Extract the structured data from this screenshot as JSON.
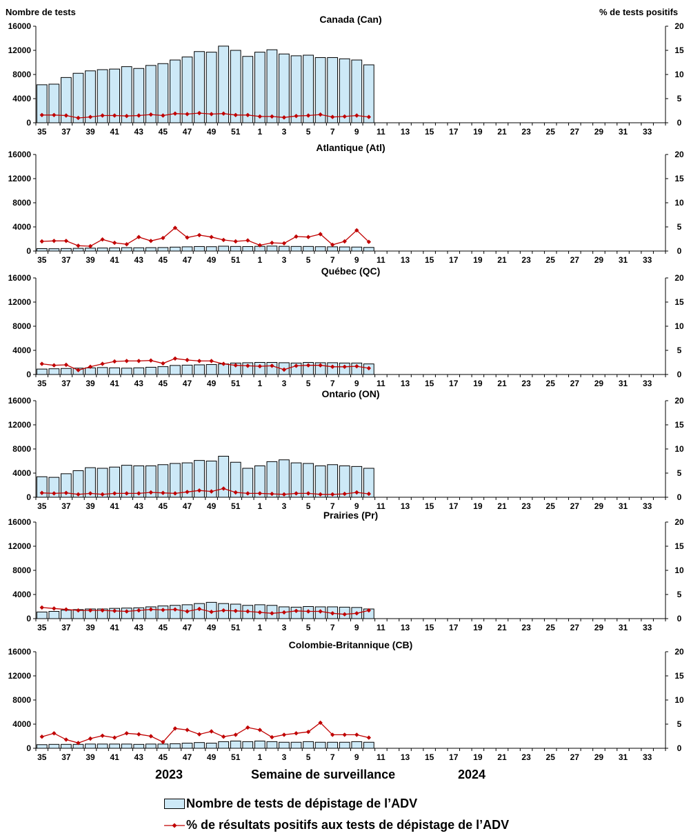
{
  "y_left_title": "Nombre de tests",
  "y_right_title": "% de tests positifs",
  "x_label": "Semaine de surveillance",
  "year_left": "2023",
  "year_right": "2024",
  "legend": {
    "bars": "Nombre de tests de dépistage de l’ADV",
    "line": "% de résultats positifs aux tests de dépistage de l’ADV"
  },
  "colors": {
    "bar_fill": "#cde9f7",
    "bar_stroke": "#000000",
    "line": "#c00000"
  },
  "chart_data": [
    {
      "type": "bar",
      "title": "Canada (Can)",
      "weeks": [
        35,
        36,
        37,
        38,
        39,
        40,
        41,
        42,
        43,
        44,
        45,
        46,
        47,
        48,
        49,
        50,
        51,
        52,
        1,
        2,
        3,
        4,
        5,
        6,
        7,
        8,
        9,
        10,
        11,
        12,
        13,
        14,
        15,
        16,
        17,
        18,
        19,
        20,
        21,
        22,
        23,
        24,
        25,
        26,
        27,
        28,
        29,
        30,
        31,
        32,
        33,
        34
      ],
      "x_tick_labels": [
        "35",
        "37",
        "39",
        "41",
        "43",
        "45",
        "47",
        "49",
        "51",
        "1",
        "3",
        "5",
        "7",
        "9",
        "11",
        "13",
        "15",
        "17",
        "19",
        "21",
        "23",
        "25",
        "27",
        "29",
        "31",
        "33"
      ],
      "tests": [
        6300,
        6400,
        7500,
        8200,
        8600,
        8800,
        8900,
        9300,
        9000,
        9500,
        9800,
        10400,
        10900,
        11800,
        11700,
        12700,
        12000,
        11000,
        11700,
        12100,
        11400,
        11100,
        11200,
        10800,
        10800,
        10600,
        10400,
        9600
      ],
      "percent_positive": [
        1.6,
        1.6,
        1.5,
        1.0,
        1.2,
        1.5,
        1.5,
        1.4,
        1.5,
        1.7,
        1.5,
        1.9,
        1.8,
        2.0,
        1.8,
        1.9,
        1.6,
        1.6,
        1.3,
        1.3,
        1.1,
        1.4,
        1.5,
        1.7,
        1.2,
        1.3,
        1.5,
        1.2
      ],
      "ylim_left": [
        0,
        16000
      ],
      "ylim_right": [
        0,
        20
      ],
      "y_ticks_left": [
        "0",
        "4000",
        "8000",
        "12000",
        "16000"
      ],
      "y_ticks_right": [
        "0",
        "5",
        "10",
        "15",
        "20"
      ]
    },
    {
      "type": "bar",
      "title": "Atlantique (Atl)",
      "weeks": [
        35,
        36,
        37,
        38,
        39,
        40,
        41,
        42,
        43,
        44,
        45,
        46,
        47,
        48,
        49,
        50,
        51,
        52,
        1,
        2,
        3,
        4,
        5,
        6,
        7,
        8,
        9,
        10,
        11,
        12,
        13,
        14,
        15,
        16,
        17,
        18,
        19,
        20,
        21,
        22,
        23,
        24,
        25,
        26,
        27,
        28,
        29,
        30,
        31,
        32,
        33,
        34
      ],
      "x_tick_labels": [
        "35",
        "37",
        "39",
        "41",
        "43",
        "45",
        "47",
        "49",
        "51",
        "1",
        "3",
        "5",
        "7",
        "9",
        "11",
        "13",
        "15",
        "17",
        "19",
        "21",
        "23",
        "25",
        "27",
        "29",
        "31",
        "33"
      ],
      "tests": [
        400,
        380,
        420,
        450,
        480,
        500,
        520,
        560,
        540,
        560,
        580,
        650,
        700,
        750,
        720,
        800,
        760,
        740,
        780,
        820,
        780,
        760,
        760,
        720,
        700,
        680,
        660,
        600
      ],
      "percent_positive": [
        2.0,
        2.1,
        2.1,
        1.1,
        1.0,
        2.4,
        1.7,
        1.4,
        2.9,
        2.1,
        2.7,
        4.8,
        2.8,
        3.3,
        2.9,
        2.3,
        2.0,
        2.2,
        1.2,
        1.7,
        1.6,
        3.0,
        2.9,
        3.5,
        1.3,
        2.0,
        4.3,
        1.9
      ],
      "ylim_left": [
        0,
        16000
      ],
      "ylim_right": [
        0,
        20
      ],
      "y_ticks_left": [
        "0",
        "4000",
        "8000",
        "12000",
        "16000"
      ],
      "y_ticks_right": [
        "0",
        "5",
        "10",
        "15",
        "20"
      ]
    },
    {
      "type": "bar",
      "title": "Québec (QC)",
      "weeks": [
        35,
        36,
        37,
        38,
        39,
        40,
        41,
        42,
        43,
        44,
        45,
        46,
        47,
        48,
        49,
        50,
        51,
        52,
        1,
        2,
        3,
        4,
        5,
        6,
        7,
        8,
        9,
        10,
        11,
        12,
        13,
        14,
        15,
        16,
        17,
        18,
        19,
        20,
        21,
        22,
        23,
        24,
        25,
        26,
        27,
        28,
        29,
        30,
        31,
        32,
        33,
        34
      ],
      "x_tick_labels": [
        "35",
        "37",
        "39",
        "41",
        "43",
        "45",
        "47",
        "49",
        "51",
        "1",
        "3",
        "5",
        "7",
        "9",
        "11",
        "13",
        "15",
        "17",
        "19",
        "21",
        "23",
        "25",
        "27",
        "29",
        "31",
        "33"
      ],
      "tests": [
        900,
        950,
        1000,
        1050,
        1100,
        1150,
        1100,
        1050,
        1100,
        1200,
        1300,
        1500,
        1550,
        1600,
        1650,
        1750,
        1900,
        1950,
        2000,
        2000,
        1950,
        1900,
        2000,
        1950,
        1950,
        1900,
        1900,
        1750
      ],
      "percent_positive": [
        2.2,
        1.9,
        2.0,
        0.9,
        1.6,
        2.2,
        2.7,
        2.8,
        2.8,
        2.9,
        2.3,
        3.3,
        3.0,
        2.8,
        2.8,
        2.2,
        1.9,
        1.8,
        1.7,
        1.8,
        1.0,
        1.8,
        1.9,
        1.9,
        1.6,
        1.6,
        1.7,
        1.3
      ],
      "ylim_left": [
        0,
        16000
      ],
      "ylim_right": [
        0,
        20
      ],
      "y_ticks_left": [
        "0",
        "4000",
        "8000",
        "12000",
        "16000"
      ],
      "y_ticks_right": [
        "0",
        "5",
        "10",
        "15",
        "20"
      ]
    },
    {
      "type": "bar",
      "title": "Ontario (ON)",
      "weeks": [
        35,
        36,
        37,
        38,
        39,
        40,
        41,
        42,
        43,
        44,
        45,
        46,
        47,
        48,
        49,
        50,
        51,
        52,
        1,
        2,
        3,
        4,
        5,
        6,
        7,
        8,
        9,
        10,
        11,
        12,
        13,
        14,
        15,
        16,
        17,
        18,
        19,
        20,
        21,
        22,
        23,
        24,
        25,
        26,
        27,
        28,
        29,
        30,
        31,
        32,
        33,
        34
      ],
      "x_tick_labels": [
        "35",
        "37",
        "39",
        "41",
        "43",
        "45",
        "47",
        "49",
        "51",
        "1",
        "3",
        "5",
        "7",
        "9",
        "11",
        "13",
        "15",
        "17",
        "19",
        "21",
        "23",
        "25",
        "27",
        "29",
        "31",
        "33"
      ],
      "tests": [
        3400,
        3300,
        3900,
        4400,
        4900,
        4800,
        5000,
        5300,
        5200,
        5200,
        5400,
        5600,
        5700,
        6100,
        6000,
        6800,
        5800,
        4800,
        5200,
        5900,
        6200,
        5700,
        5600,
        5200,
        5400,
        5200,
        5100,
        4800
      ],
      "percent_positive": [
        0.9,
        0.8,
        0.9,
        0.6,
        0.8,
        0.6,
        0.8,
        0.8,
        0.8,
        1.0,
        0.9,
        0.8,
        1.1,
        1.4,
        1.2,
        1.8,
        1.0,
        0.8,
        0.8,
        0.7,
        0.6,
        0.8,
        0.8,
        0.6,
        0.6,
        0.7,
        1.0,
        0.7
      ],
      "ylim_left": [
        0,
        16000
      ],
      "ylim_right": [
        0,
        20
      ],
      "y_ticks_left": [
        "0",
        "4000",
        "8000",
        "12000",
        "16000"
      ],
      "y_ticks_right": [
        "0",
        "5",
        "10",
        "15",
        "20"
      ]
    },
    {
      "type": "bar",
      "title": "Prairies (Pr)",
      "weeks": [
        35,
        36,
        37,
        38,
        39,
        40,
        41,
        42,
        43,
        44,
        45,
        46,
        47,
        48,
        49,
        50,
        51,
        52,
        1,
        2,
        3,
        4,
        5,
        6,
        7,
        8,
        9,
        10,
        11,
        12,
        13,
        14,
        15,
        16,
        17,
        18,
        19,
        20,
        21,
        22,
        23,
        24,
        25,
        26,
        27,
        28,
        29,
        30,
        31,
        32,
        33,
        34
      ],
      "x_tick_labels": [
        "35",
        "37",
        "39",
        "41",
        "43",
        "45",
        "47",
        "49",
        "51",
        "1",
        "3",
        "5",
        "7",
        "9",
        "11",
        "13",
        "15",
        "17",
        "19",
        "21",
        "23",
        "25",
        "27",
        "29",
        "31",
        "33"
      ],
      "tests": [
        1100,
        1200,
        1400,
        1500,
        1600,
        1600,
        1700,
        1750,
        1800,
        1950,
        2100,
        2200,
        2300,
        2500,
        2700,
        2500,
        2400,
        2200,
        2300,
        2200,
        1950,
        1900,
        2000,
        1950,
        1950,
        1900,
        1850,
        1600
      ],
      "percent_positive": [
        2.3,
        2.1,
        1.9,
        1.7,
        1.7,
        1.7,
        1.6,
        1.5,
        1.7,
        1.9,
        1.8,
        1.9,
        1.5,
        2.0,
        1.4,
        1.7,
        1.6,
        1.5,
        1.3,
        1.1,
        1.3,
        1.6,
        1.5,
        1.5,
        1.1,
        0.9,
        1.1,
        1.7
      ],
      "ylim_left": [
        0,
        16000
      ],
      "ylim_right": [
        0,
        20
      ],
      "y_ticks_left": [
        "0",
        "4000",
        "8000",
        "12000",
        "16000"
      ],
      "y_ticks_right": [
        "0",
        "5",
        "10",
        "15",
        "20"
      ]
    },
    {
      "type": "bar",
      "title": "Colombie-Britannique (CB)",
      "weeks": [
        35,
        36,
        37,
        38,
        39,
        40,
        41,
        42,
        43,
        44,
        45,
        46,
        47,
        48,
        49,
        50,
        51,
        52,
        1,
        2,
        3,
        4,
        5,
        6,
        7,
        8,
        9,
        10,
        11,
        12,
        13,
        14,
        15,
        16,
        17,
        18,
        19,
        20,
        21,
        22,
        23,
        24,
        25,
        26,
        27,
        28,
        29,
        30,
        31,
        32,
        33,
        34
      ],
      "x_tick_labels": [
        "35",
        "37",
        "39",
        "41",
        "43",
        "45",
        "47",
        "49",
        "51",
        "1",
        "3",
        "5",
        "7",
        "9",
        "11",
        "13",
        "15",
        "17",
        "19",
        "21",
        "23",
        "25",
        "27",
        "29",
        "31",
        "33"
      ],
      "tests": [
        600,
        650,
        650,
        650,
        700,
        700,
        700,
        700,
        650,
        700,
        700,
        750,
        850,
        950,
        850,
        1100,
        1200,
        1100,
        1200,
        1100,
        1000,
        1000,
        1100,
        1000,
        1000,
        1000,
        1100,
        1000
      ],
      "percent_positive": [
        2.4,
        3.1,
        1.8,
        1.1,
        2.0,
        2.6,
        2.2,
        3.1,
        2.9,
        2.5,
        1.3,
        4.1,
        3.8,
        2.9,
        3.5,
        2.4,
        2.8,
        4.3,
        3.8,
        2.3,
        2.8,
        3.1,
        3.4,
        5.3,
        2.8,
        2.8,
        2.8,
        2.2
      ],
      "ylim_left": [
        0,
        16000
      ],
      "ylim_right": [
        0,
        20
      ],
      "y_ticks_left": [
        "0",
        "4000",
        "8000",
        "12000",
        "16000"
      ],
      "y_ticks_right": [
        "0",
        "5",
        "10",
        "15",
        "20"
      ]
    }
  ]
}
